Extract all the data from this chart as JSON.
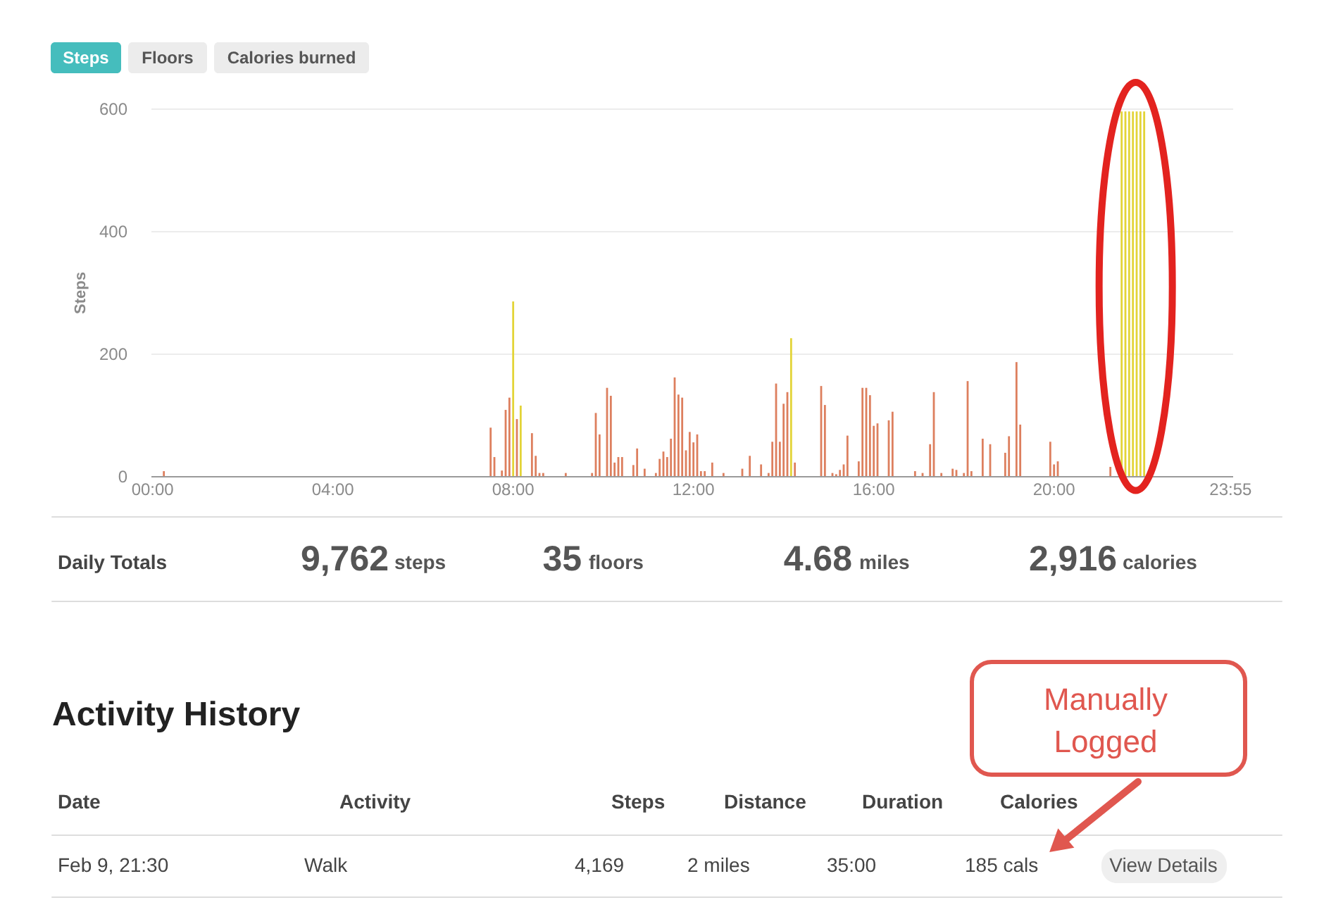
{
  "chart_data": {
    "type": "bar",
    "ylabel": "Steps",
    "categories": [
      "00:00",
      null,
      null,
      null,
      null,
      null,
      null,
      null,
      null,
      null,
      null,
      null,
      null,
      null,
      null,
      null,
      null,
      null,
      null,
      null,
      null,
      null,
      null,
      null,
      null,
      null,
      null,
      null,
      null,
      null,
      null,
      null,
      null,
      null,
      null,
      null,
      null,
      null,
      null,
      null,
      null,
      null,
      null,
      null,
      null,
      null,
      null,
      null,
      "04:00",
      null,
      null,
      null,
      null,
      null,
      null,
      null,
      null,
      null,
      null,
      null,
      null,
      null,
      null,
      null,
      null,
      null,
      null,
      null,
      null,
      null,
      null,
      null,
      null,
      null,
      null,
      null,
      null,
      null,
      null,
      null,
      null,
      null,
      null,
      null,
      null,
      null,
      null,
      null,
      null,
      null,
      null,
      null,
      null,
      null,
      null,
      null,
      "08:00",
      null,
      null,
      null,
      null,
      null,
      null,
      null,
      null,
      null,
      null,
      null,
      null,
      null,
      null,
      null,
      null,
      null,
      null,
      null,
      null,
      null,
      null,
      null,
      null,
      null,
      null,
      null,
      null,
      null,
      null,
      null,
      null,
      null,
      null,
      null,
      null,
      null,
      null,
      null,
      null,
      null,
      null,
      null,
      null,
      null,
      null,
      null,
      "12:00",
      null,
      null,
      null,
      null,
      null,
      null,
      null,
      null,
      null,
      null,
      null,
      null,
      null,
      null,
      null,
      null,
      null,
      null,
      null,
      null,
      null,
      null,
      null,
      null,
      null,
      null,
      null,
      null,
      null,
      null,
      null,
      null,
      null,
      null,
      null,
      null,
      null,
      null,
      null,
      null,
      null,
      null,
      null,
      null,
      null,
      null,
      null,
      "16:00",
      null,
      null,
      null,
      null,
      null,
      null,
      null,
      null,
      null,
      null,
      null,
      null,
      null,
      null,
      null,
      null,
      null,
      null,
      null,
      null,
      null,
      null,
      null,
      null,
      null,
      null,
      null,
      null,
      null,
      null,
      null,
      null,
      null,
      null,
      null,
      null,
      null,
      null,
      null,
      null,
      null,
      null,
      null,
      null,
      null,
      null,
      null,
      "20:00",
      null,
      null,
      null,
      null,
      null,
      null,
      null,
      null,
      null,
      null,
      null,
      null,
      null,
      null,
      null,
      null,
      null,
      null,
      null,
      null,
      null,
      null,
      null,
      null,
      null,
      null,
      null,
      null,
      null,
      null,
      null,
      null,
      null,
      null,
      null,
      null,
      null,
      null,
      null,
      null,
      null,
      null,
      null,
      null,
      null,
      null,
      "23:55"
    ],
    "series": [
      {
        "color": "#dd7f5e",
        "values": [
          null,
          null,
          null,
          8,
          null,
          null,
          null,
          null,
          null,
          null,
          null,
          null,
          null,
          null,
          null,
          null,
          null,
          null,
          null,
          null,
          null,
          null,
          null,
          null,
          null,
          null,
          null,
          null,
          null,
          null,
          null,
          null,
          null,
          null,
          null,
          null,
          null,
          null,
          null,
          null,
          null,
          null,
          null,
          null,
          null,
          null,
          null,
          null,
          null,
          null,
          null,
          null,
          null,
          null,
          null,
          null,
          null,
          null,
          null,
          null,
          null,
          null,
          null,
          null,
          null,
          null,
          null,
          null,
          null,
          null,
          null,
          null,
          null,
          null,
          null,
          null,
          null,
          null,
          null,
          null,
          null,
          null,
          null,
          null,
          null,
          null,
          null,
          null,
          null,
          null,
          79,
          31,
          null,
          9,
          108,
          128,
          null,
          93,
          null,
          null,
          null,
          70,
          33,
          5,
          5,
          null,
          null,
          null,
          null,
          null,
          5,
          null,
          null,
          null,
          null,
          null,
          null,
          5,
          103,
          68,
          null,
          144,
          131,
          22,
          31,
          31,
          null,
          null,
          18,
          45,
          null,
          12,
          null,
          null,
          5,
          28,
          40,
          31,
          61,
          161,
          133,
          128,
          42,
          72,
          55,
          68,
          8,
          8,
          null,
          22,
          null,
          null,
          5,
          null,
          null,
          null,
          null,
          12,
          null,
          33,
          null,
          null,
          19,
          null,
          5,
          56,
          151,
          56,
          118,
          137,
          null,
          22,
          null,
          null,
          null,
          null,
          null,
          null,
          147,
          116,
          null,
          5,
          3,
          10,
          19,
          66,
          null,
          null,
          24,
          144,
          144,
          132,
          82,
          86,
          null,
          null,
          91,
          105,
          null,
          null,
          null,
          null,
          null,
          8,
          null,
          5,
          null,
          52,
          137,
          null,
          5,
          null,
          null,
          12,
          10,
          null,
          5,
          155,
          8,
          null,
          null,
          61,
          null,
          52,
          null,
          null,
          null,
          38,
          65,
          null,
          186,
          84,
          null,
          null,
          null,
          null,
          null,
          null,
          null,
          56,
          19,
          24,
          null,
          null,
          null,
          null,
          null,
          null,
          null,
          null,
          null,
          null,
          null,
          null,
          null,
          15,
          null,
          null,
          null,
          null,
          null,
          null,
          null,
          null,
          null,
          null,
          null,
          null,
          null,
          null,
          null,
          null,
          null,
          null,
          null,
          null,
          null,
          null,
          null,
          null,
          null,
          null,
          null,
          null,
          null,
          null,
          null,
          null
        ]
      },
      {
        "color": "#e3d437",
        "values": [
          null,
          null,
          null,
          null,
          null,
          null,
          null,
          null,
          null,
          null,
          null,
          null,
          null,
          null,
          null,
          null,
          null,
          null,
          null,
          null,
          null,
          null,
          null,
          null,
          null,
          null,
          null,
          null,
          null,
          null,
          null,
          null,
          null,
          null,
          null,
          null,
          null,
          null,
          null,
          null,
          null,
          null,
          null,
          null,
          null,
          null,
          null,
          null,
          null,
          null,
          null,
          null,
          null,
          null,
          null,
          null,
          null,
          null,
          null,
          null,
          null,
          null,
          null,
          null,
          null,
          null,
          null,
          null,
          null,
          null,
          null,
          null,
          null,
          null,
          null,
          null,
          null,
          null,
          null,
          null,
          null,
          null,
          null,
          null,
          null,
          null,
          null,
          null,
          null,
          null,
          null,
          null,
          null,
          null,
          null,
          null,
          285,
          null,
          115,
          null,
          null,
          null,
          null,
          null,
          null,
          null,
          null,
          null,
          null,
          null,
          null,
          null,
          null,
          null,
          null,
          null,
          null,
          null,
          null,
          null,
          null,
          null,
          null,
          null,
          null,
          null,
          null,
          null,
          null,
          null,
          null,
          null,
          null,
          null,
          null,
          null,
          null,
          null,
          null,
          null,
          null,
          null,
          null,
          null,
          null,
          null,
          null,
          null,
          null,
          null,
          null,
          null,
          null,
          null,
          null,
          null,
          null,
          null,
          null,
          null,
          null,
          null,
          null,
          null,
          null,
          null,
          null,
          null,
          null,
          null,
          225,
          null,
          null,
          null,
          null,
          null,
          null,
          null,
          null,
          null,
          null,
          null,
          null,
          null,
          null,
          null,
          null,
          null,
          null,
          null,
          null,
          null,
          null,
          null,
          null,
          null,
          null,
          null,
          null,
          null,
          null,
          null,
          null,
          null,
          null,
          null,
          null,
          null,
          null,
          null,
          null,
          null,
          null,
          null,
          null,
          null,
          null,
          null,
          null,
          null,
          null,
          null,
          null,
          null,
          null,
          null,
          null,
          null,
          null,
          null,
          null,
          null,
          null,
          null,
          null,
          null,
          null,
          null,
          null,
          null,
          null,
          null,
          null,
          null,
          null,
          null,
          null,
          null,
          null,
          null,
          null,
          null,
          null,
          null,
          null,
          null,
          null,
          null,
          595,
          595,
          595,
          595,
          595,
          595,
          595,
          null,
          null,
          null,
          null,
          null,
          null,
          null,
          null,
          null,
          null,
          null,
          null,
          null,
          null,
          null,
          null,
          null,
          null,
          null,
          null,
          null,
          null,
          null
        ]
      }
    ],
    "ylim": [
      0,
      600
    ],
    "yticks": [
      0,
      200,
      400,
      600
    ],
    "grid": "y",
    "annotations": [
      "Steps",
      "Floors",
      "Calories burned",
      "Daily Totals",
      "9,762",
      "steps",
      "35",
      "floors",
      "4.68",
      "miles",
      "2,916",
      "calories",
      "Activity History",
      "Date",
      "Activity",
      "Steps",
      "Distance",
      "Duration",
      "Calories",
      "Feb 9, 21:30",
      "Walk",
      "4,169",
      "2 miles",
      "35:00",
      "185 cals",
      "View Details",
      "Manually Logged"
    ]
  }
}
